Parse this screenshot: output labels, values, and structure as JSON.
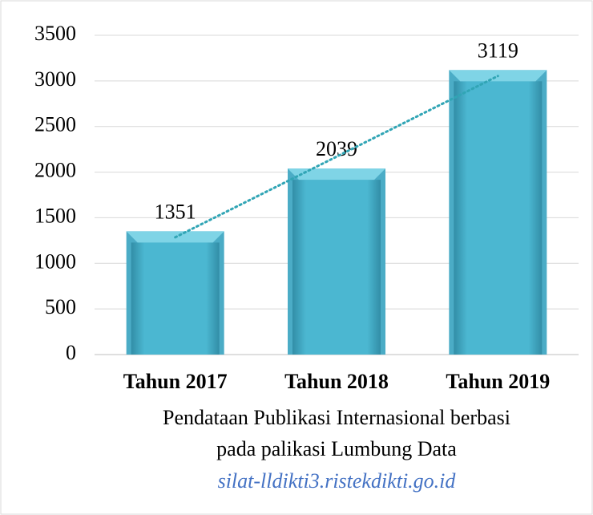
{
  "chart_data": {
    "type": "bar",
    "categories": [
      "Tahun 2017",
      "Tahun 2018",
      "Tahun 2019"
    ],
    "values": [
      1351,
      2039,
      3119
    ],
    "color": "#4bacc6",
    "ylim": [
      0,
      3500
    ],
    "yticks": [
      0,
      500,
      1000,
      1500,
      2000,
      2500,
      3000,
      3500
    ],
    "grid": true,
    "trendline": "linear",
    "trendline_color": "#31a5b5",
    "caption": [
      "Pendataan Publikasi Internasional berbasi",
      "pada palikasi Lumbung Data"
    ],
    "source": "silat-lldikti3.ristekdikti.go.id"
  }
}
